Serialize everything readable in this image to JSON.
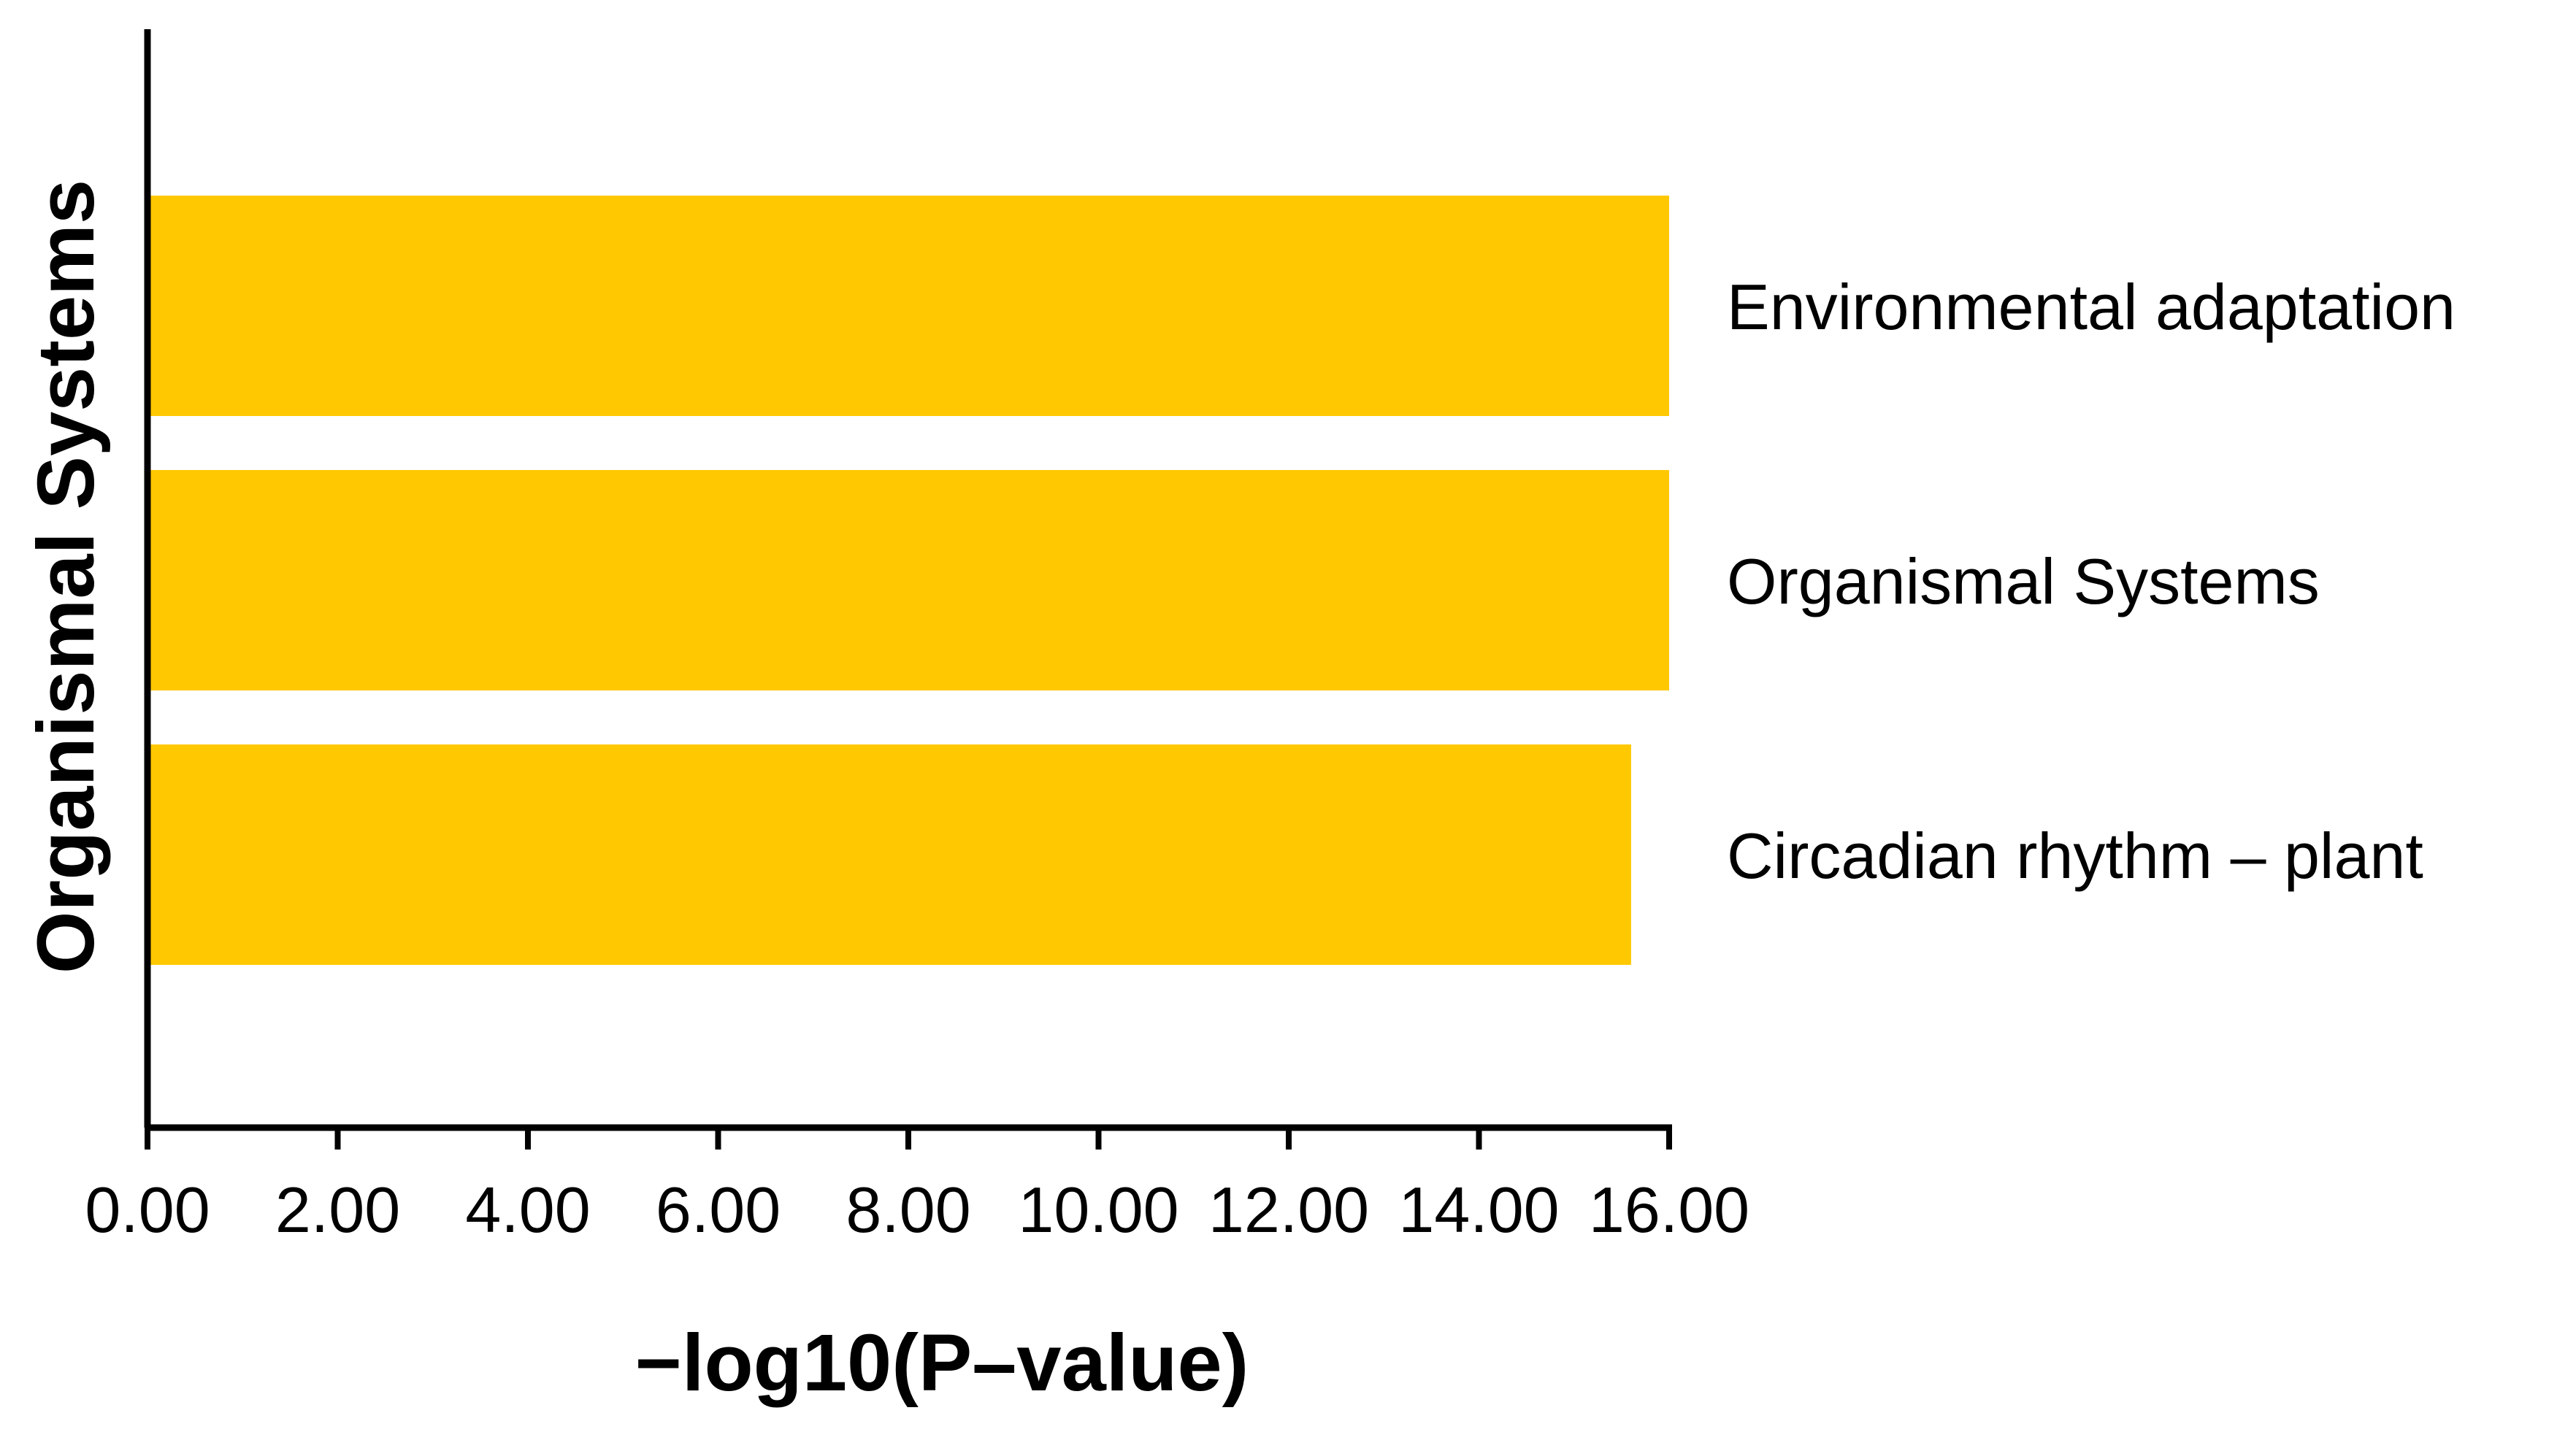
{
  "chart_data": {
    "type": "bar",
    "orientation": "horizontal",
    "categories": [
      "Environmental adaptation",
      "Organismal Systems",
      "Circadian rhythm – plant"
    ],
    "values": [
      16.0,
      16.0,
      15.6
    ],
    "bar_color": "#FFC800",
    "xlabel": "−log10(P–value)",
    "ylabel": "Organismal Systems",
    "xlim": [
      0,
      16
    ],
    "xticks": [
      "0.00",
      "2.00",
      "4.00",
      "6.00",
      "8.00",
      "10.00",
      "12.00",
      "14.00",
      "16.00"
    ],
    "grid": false,
    "legend": "none"
  }
}
